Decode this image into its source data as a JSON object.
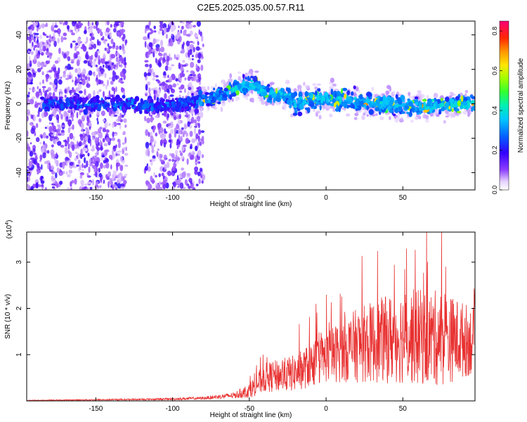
{
  "title": "C2E5.2025.035.00.57.R11",
  "chart_data": [
    {
      "type": "heatmap",
      "title": "C2E5.2025.035.00.57.R11",
      "xlabel": "Height of straight line (km)",
      "ylabel": "Frequency (Hz)",
      "xlim": [
        -195,
        97
      ],
      "ylim": [
        -50,
        48
      ],
      "xticks": [
        -150,
        -100,
        -50,
        0,
        50
      ],
      "yticks": [
        -40,
        -20,
        0,
        20,
        40
      ],
      "colorbar": {
        "label": "Normalized spectral amplitude",
        "range": [
          0.0,
          0.85
        ],
        "ticks": [
          0.0,
          0.2,
          0.4,
          0.6,
          0.8
        ],
        "tick_labels": [
          "0.0",
          "0.2",
          "0.4",
          "0.6",
          "0.8"
        ],
        "colormap": "rainbow"
      },
      "features": {
        "scattered_noise_x_range": [
          -195,
          -80
        ],
        "gap_x_range": [
          -130,
          -118
        ],
        "signal_band": [
          {
            "x": -175,
            "center": 0,
            "halfwidth": 5
          },
          {
            "x": -100,
            "center": -1,
            "halfwidth": 5
          },
          {
            "x": -85,
            "center": 1,
            "halfwidth": 5
          },
          {
            "x": -70,
            "center": 5,
            "halfwidth": 6
          },
          {
            "x": -58,
            "center": 9,
            "halfwidth": 6
          },
          {
            "x": -48,
            "center": 12,
            "halfwidth": 6
          },
          {
            "x": -40,
            "center": 6,
            "halfwidth": 5
          },
          {
            "x": -25,
            "center": 5,
            "halfwidth": 6
          },
          {
            "x": -20,
            "center": 0,
            "halfwidth": 7
          },
          {
            "x": -10,
            "center": 3,
            "halfwidth": 6
          },
          {
            "x": 20,
            "center": 2,
            "halfwidth": 7
          },
          {
            "x": 60,
            "center": -2,
            "halfwidth": 6
          },
          {
            "x": 95,
            "center": 0,
            "halfwidth": 6
          }
        ]
      }
    },
    {
      "type": "line",
      "xlabel": "Height of straight line (km)",
      "ylabel": "SNR (10 * v/v)",
      "y_multiplier_label": "(x10",
      "y_multiplier_exp": "4",
      "y_multiplier_close": ")",
      "xlim": [
        -195,
        97
      ],
      "ylim": [
        0,
        3.65
      ],
      "xticks": [
        -150,
        -100,
        -50,
        0,
        50
      ],
      "yticks": [
        1,
        2,
        3
      ],
      "series": [
        {
          "color": "#e83030",
          "envelope": [
            {
              "x": -195,
              "mean": 0.01,
              "amp": 0.01
            },
            {
              "x": -130,
              "mean": 0.03,
              "amp": 0.02
            },
            {
              "x": -100,
              "mean": 0.04,
              "amp": 0.03
            },
            {
              "x": -80,
              "mean": 0.06,
              "amp": 0.04
            },
            {
              "x": -60,
              "mean": 0.12,
              "amp": 0.08
            },
            {
              "x": -50,
              "mean": 0.22,
              "amp": 0.2
            },
            {
              "x": -40,
              "mean": 0.5,
              "amp": 0.4
            },
            {
              "x": -20,
              "mean": 0.6,
              "amp": 0.5
            },
            {
              "x": 0,
              "mean": 0.95,
              "amp": 0.7
            },
            {
              "x": 20,
              "mean": 1.2,
              "amp": 1.0
            },
            {
              "x": 50,
              "mean": 1.4,
              "amp": 1.3
            },
            {
              "x": 75,
              "mean": 1.35,
              "amp": 1.3
            },
            {
              "x": 97,
              "mean": 1.3,
              "amp": 0.9
            }
          ]
        }
      ]
    }
  ]
}
